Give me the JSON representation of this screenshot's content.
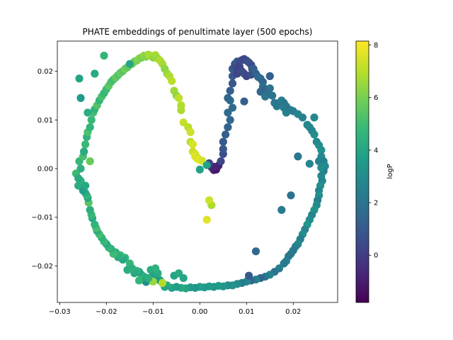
{
  "chart_data": {
    "type": "scatter",
    "title": "PHATE embeddings of penultimate layer (500 epochs)",
    "xlabel": "",
    "ylabel": "",
    "xlim": [
      -0.0305,
      0.0295
    ],
    "ylim": [
      -0.0275,
      0.0262
    ],
    "xticks": [
      -0.03,
      -0.02,
      -0.01,
      0.0,
      0.01,
      0.02
    ],
    "xtick_labels": [
      "−0.03",
      "−0.02",
      "−0.01",
      "0.00",
      "0.01",
      "0.02"
    ],
    "yticks": [
      0.02,
      0.01,
      0.0,
      -0.01,
      -0.02
    ],
    "ytick_labels": [
      "0.02",
      "0.01",
      "0.00",
      "−0.01",
      "−0.02"
    ],
    "grid": false,
    "colorbar": {
      "label": "logP",
      "colormap": "viridis",
      "range": [
        -1.8,
        8.15
      ],
      "ticks": [
        0,
        2,
        4,
        6,
        8
      ],
      "tick_labels": [
        "0",
        "2",
        "4",
        "6",
        "8"
      ]
    },
    "marker_color_scale": [
      "#440154",
      "#482878",
      "#3e4989",
      "#31688e",
      "#26828e",
      "#1f9e89",
      "#35b779",
      "#6ece58",
      "#b5de2b",
      "#fde725"
    ],
    "points_x": [
      0.0,
      0.003,
      0.0035,
      0.004,
      0.003,
      0.0025,
      0.002,
      0.0045,
      0.005,
      0.005,
      0.005,
      0.0055,
      0.006,
      0.0065,
      0.006,
      0.007,
      0.0065,
      0.006,
      0.0065,
      0.007,
      0.007,
      0.007,
      0.0075,
      0.0075,
      0.008,
      0.008,
      0.008,
      0.0085,
      0.0085,
      0.009,
      0.0095,
      0.01,
      0.0105,
      0.011,
      0.0112,
      0.0115,
      0.01,
      0.0095,
      0.009,
      0.011,
      0.0115,
      0.012,
      0.0125,
      0.013,
      0.0135,
      0.0135,
      0.013,
      0.014,
      0.015,
      0.015,
      0.0145,
      0.014,
      0.0155,
      0.016,
      0.0165,
      0.017,
      0.0175,
      0.018,
      0.018,
      0.0185,
      0.0185,
      0.019,
      0.0195,
      0.02,
      0.021,
      0.022,
      0.023,
      0.0235,
      0.024,
      0.0245,
      0.025,
      0.0255,
      0.026,
      0.026,
      0.0265,
      0.0268,
      0.0265,
      0.026,
      0.0262,
      0.0258,
      0.0255,
      0.0255,
      0.0252,
      0.025,
      0.0245,
      0.024,
      0.0235,
      0.023,
      0.0225,
      0.022,
      0.0215,
      0.021,
      0.0205,
      0.02,
      0.0195,
      0.019,
      0.0185,
      0.018,
      0.017,
      0.016,
      0.015,
      0.014,
      0.013,
      0.012,
      0.011,
      0.01,
      0.009,
      0.008,
      0.007,
      0.006,
      0.005,
      0.004,
      0.003,
      0.002,
      0.001,
      0.0,
      -0.001,
      -0.002,
      -0.003,
      -0.004,
      -0.005,
      -0.006,
      -0.007,
      -0.0075,
      -0.008,
      -0.0085,
      -0.009,
      -0.0095,
      -0.01,
      -0.0105,
      -0.011,
      -0.0115,
      -0.012,
      -0.0125,
      -0.013,
      -0.0135,
      -0.014,
      -0.0145,
      -0.015,
      -0.0155,
      -0.016,
      -0.0165,
      -0.017,
      -0.0175,
      -0.018,
      -0.0185,
      -0.019,
      -0.0195,
      -0.02,
      -0.0205,
      -0.021,
      -0.0215,
      -0.022,
      -0.0222,
      -0.0225,
      -0.023,
      -0.0232,
      -0.0235,
      -0.0238,
      -0.024,
      -0.0242,
      -0.0245,
      -0.025,
      -0.0255,
      -0.026,
      -0.0265,
      -0.026,
      -0.0258,
      -0.0255,
      -0.025,
      -0.0248,
      -0.0245,
      -0.0242,
      -0.024,
      -0.0235,
      -0.0232,
      -0.0228,
      -0.0225,
      -0.022,
      -0.0215,
      -0.021,
      -0.0205,
      -0.02,
      -0.0195,
      -0.019,
      -0.0185,
      -0.018,
      -0.0175,
      -0.017,
      -0.0165,
      -0.016,
      -0.0155,
      -0.015,
      -0.0145,
      -0.014,
      -0.0135,
      -0.013,
      -0.0125,
      -0.012,
      -0.0115,
      -0.011,
      -0.0105,
      -0.01,
      -0.0095,
      -0.009,
      -0.0085,
      -0.008,
      -0.0075,
      -0.007,
      -0.0065,
      -0.006,
      -0.0055,
      -0.005,
      -0.0045,
      -0.004,
      -0.004,
      -0.0035,
      -0.0025,
      -0.002,
      -0.002,
      -0.0015,
      -0.0015,
      -0.001,
      -0.001,
      -0.0005,
      -0.0005,
      0.0,
      0.0005,
      0.0015,
      0.0025,
      0.002,
      -0.025,
      -0.0245,
      -0.0235,
      -0.024,
      -0.0255,
      -0.0258,
      -0.0225,
      -0.0205,
      -0.015,
      -0.0145,
      -0.01,
      -0.008,
      -0.0055,
      -0.0045,
      -0.0035,
      -0.013,
      -0.011,
      -0.009,
      -0.0095,
      0.0095,
      0.0105,
      0.012,
      0.0175,
      0.0195,
      0.021,
      0.0245,
      0.0255,
      0.026,
      0.0235,
      0.0015,
      0.003,
      0.004,
      0.0025
    ],
    "points_y": [
      -0.0002,
      -0.0003,
      -0.0002,
      0.0006,
      0.0004,
      0.0003,
      0.0011,
      0.0015,
      0.003,
      0.004,
      0.0055,
      0.007,
      0.0085,
      0.01,
      0.0115,
      0.0125,
      0.014,
      0.0145,
      0.016,
      0.0175,
      0.019,
      0.0205,
      0.021,
      0.0215,
      0.022,
      0.0205,
      0.0195,
      0.021,
      0.022,
      0.0223,
      0.0225,
      0.0222,
      0.0218,
      0.0213,
      0.0205,
      0.0195,
      0.019,
      0.0195,
      0.02,
      0.0193,
      0.0205,
      0.0195,
      0.0188,
      0.0185,
      0.0178,
      0.0168,
      0.0158,
      0.0163,
      0.019,
      0.0165,
      0.0155,
      0.0148,
      0.015,
      0.0135,
      0.0128,
      0.0135,
      0.014,
      0.0135,
      0.0125,
      0.0128,
      0.0115,
      0.0122,
      0.012,
      0.0118,
      0.0112,
      0.0105,
      0.009,
      0.0085,
      0.0078,
      0.007,
      0.0055,
      0.0048,
      0.0038,
      0.0025,
      0.0015,
      0.0005,
      -0.0005,
      -0.0015,
      -0.0025,
      -0.0035,
      -0.0045,
      -0.0055,
      -0.0065,
      -0.0075,
      -0.0085,
      -0.0095,
      -0.0105,
      -0.0115,
      -0.0125,
      -0.0135,
      -0.0145,
      -0.0155,
      -0.016,
      -0.0168,
      -0.0175,
      -0.018,
      -0.019,
      -0.0195,
      -0.0205,
      -0.0212,
      -0.0218,
      -0.0222,
      -0.0225,
      -0.0228,
      -0.023,
      -0.0232,
      -0.0235,
      -0.0237,
      -0.024,
      -0.024,
      -0.0242,
      -0.0241,
      -0.0243,
      -0.0242,
      -0.0244,
      -0.0243,
      -0.0245,
      -0.0244,
      -0.0246,
      -0.0245,
      -0.0243,
      -0.0245,
      -0.024,
      -0.0243,
      -0.0235,
      -0.023,
      -0.0225,
      -0.0228,
      -0.0215,
      -0.0208,
      -0.0225,
      -0.0233,
      -0.0222,
      -0.0218,
      -0.0212,
      -0.021,
      -0.0215,
      -0.0205,
      -0.0195,
      -0.0208,
      -0.0183,
      -0.0187,
      -0.0178,
      -0.0182,
      -0.0172,
      -0.0175,
      -0.0165,
      -0.0162,
      -0.0155,
      -0.015,
      -0.0142,
      -0.0135,
      -0.0128,
      -0.0122,
      -0.0115,
      -0.0102,
      -0.0095,
      -0.0085,
      -0.007,
      -0.006,
      -0.0055,
      -0.005,
      -0.004,
      -0.0025,
      -0.0035,
      -0.001,
      -0.002,
      0.0015,
      0.0,
      0.0025,
      0.0035,
      0.005,
      0.0065,
      0.0075,
      0.0085,
      0.01,
      0.0115,
      0.0122,
      0.013,
      0.014,
      0.0148,
      0.0155,
      0.0163,
      0.017,
      0.0178,
      0.0183,
      0.0187,
      0.0192,
      0.0197,
      0.02,
      0.0205,
      0.0208,
      0.0213,
      0.0215,
      0.022,
      0.0222,
      0.0226,
      0.0228,
      0.0232,
      0.023,
      0.0234,
      0.0232,
      0.0228,
      0.0233,
      0.0226,
      0.0222,
      0.0215,
      0.0205,
      0.0195,
      0.019,
      0.018,
      0.016,
      0.015,
      0.0145,
      0.013,
      0.012,
      0.0095,
      0.0085,
      0.0075,
      0.0055,
      0.005,
      0.0035,
      0.003,
      0.0025,
      0.0022,
      0.002,
      0.0018,
      0.0016,
      -0.0105,
      -0.0075,
      -0.0065,
      -0.0045,
      -0.0035,
      0.0015,
      0.0115,
      0.0145,
      0.0185,
      0.0195,
      0.0232,
      0.0215,
      -0.0205,
      -0.0232,
      -0.0235,
      -0.022,
      -0.0215,
      -0.0225,
      -0.023,
      -0.0225,
      -0.0215,
      -0.0205,
      0.0138,
      -0.022,
      -0.017,
      -0.0085,
      -0.0055,
      0.0025,
      0.0105,
      0.0015,
      0.0002,
      0.001,
      0.0007
    ],
    "points_value": [
      3.9,
      -1.0,
      -1.2,
      -0.9,
      -0.7,
      -0.8,
      0.2,
      0.3,
      0.6,
      0.9,
      1.0,
      1.2,
      1.3,
      1.5,
      1.7,
      1.6,
      1.8,
      1.4,
      1.2,
      0.9,
      1.0,
      1.1,
      0.8,
      0.6,
      1.0,
      0.5,
      0.3,
      0.2,
      0.4,
      0.6,
      0.3,
      0.5,
      0.8,
      0.6,
      0.9,
      1.0,
      0.2,
      0.4,
      0.5,
      0.6,
      1.2,
      1.3,
      1.5,
      1.6,
      1.4,
      1.8,
      1.5,
      1.3,
      1.2,
      2.0,
      1.8,
      2.1,
      2.0,
      2.2,
      2.3,
      2.1,
      2.4,
      2.2,
      2.5,
      2.3,
      2.6,
      2.3,
      2.4,
      2.5,
      2.7,
      2.6,
      2.8,
      2.9,
      2.7,
      3.1,
      2.8,
      3.0,
      3.2,
      2.9,
      2.6,
      3.0,
      2.5,
      2.9,
      2.7,
      3.1,
      2.8,
      3.2,
      2.6,
      3.0,
      3.3,
      2.8,
      3.0,
      3.4,
      2.7,
      3.1,
      2.5,
      2.9,
      2.6,
      2.2,
      2.4,
      2.1,
      2.6,
      2.3,
      2.5,
      2.0,
      2.7,
      2.2,
      1.4,
      2.6,
      1.6,
      2.8,
      2.4,
      3.0,
      3.3,
      3.1,
      3.5,
      3.6,
      3.4,
      3.7,
      3.5,
      3.8,
      3.4,
      3.6,
      3.9,
      4.2,
      3.7,
      3.9,
      4.4,
      4.0,
      3.8,
      3.6,
      4.1,
      3.5,
      3.9,
      4.3,
      3.8,
      3.2,
      3.7,
      4.5,
      4.0,
      4.6,
      4.2,
      4.4,
      4.8,
      4.3,
      4.7,
      4.1,
      4.9,
      4.4,
      4.6,
      5.0,
      4.5,
      4.8,
      4.3,
      4.9,
      4.6,
      5.1,
      4.4,
      5.2,
      4.7,
      4.2,
      4.9,
      4.5,
      5.5,
      4.0,
      4.8,
      4.3,
      4.1,
      4.6,
      4.4,
      5.0,
      4.2,
      4.8,
      4.5,
      5.2,
      4.3,
      4.9,
      4.6,
      5.3,
      4.7,
      4.9,
      5.1,
      4.6,
      5.4,
      4.8,
      5.2,
      4.9,
      5.0,
      5.6,
      5.3,
      5.1,
      5.7,
      5.4,
      5.8,
      5.5,
      6.0,
      5.6,
      5.9,
      6.2,
      5.8,
      6.1,
      6.4,
      6.0,
      6.5,
      6.3,
      6.7,
      6.9,
      6.5,
      6.8,
      6.6,
      7.0,
      6.8,
      6.4,
      6.6,
      6.9,
      7.1,
      6.7,
      6.5,
      7.2,
      7.0,
      6.9,
      7.3,
      7.1,
      7.4,
      7.2,
      7.6,
      7.3,
      7.5,
      7.7,
      7.4,
      7.6,
      7.8,
      7.5,
      7.7,
      6.9,
      7.4,
      3.8,
      4.2,
      5.8,
      4.4,
      3.6,
      4.0,
      4.3,
      4.7,
      4.1,
      4.5,
      6.6,
      7.0,
      4.0,
      4.2,
      4.1,
      4.8,
      4.5,
      4.3,
      4.6,
      1.2,
      1.0,
      1.5,
      2.3,
      2.0,
      2.2,
      2.9,
      2.7,
      3.1,
      2.8,
      3.9,
      -0.8,
      0.6,
      4.0
    ]
  }
}
